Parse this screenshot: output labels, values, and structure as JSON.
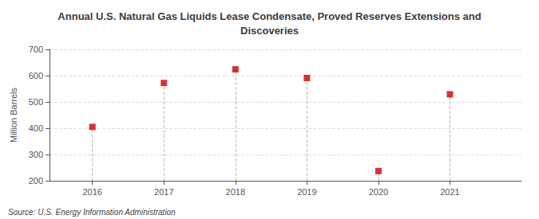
{
  "chart_data": {
    "type": "scatter",
    "title": "Annual U.S. Natural Gas Liquids Lease Condensate, Proved Reserves Extensions and\nDiscoveries",
    "ylabel": "Million Barrels",
    "annotations": [
      "Source: U.S. Energy Information Administration"
    ],
    "x": [
      2016,
      2017,
      2018,
      2019,
      2020,
      2021
    ],
    "values": [
      405,
      572,
      624,
      591,
      237,
      529
    ],
    "color": "#CC0000",
    "marker": "square",
    "xlim": [
      2015.4,
      2022.0
    ],
    "xticks": [
      2016,
      2017,
      2018,
      2019,
      2020,
      2021
    ],
    "ylim": [
      200,
      700
    ],
    "yticks": [
      200,
      300,
      400,
      500,
      600,
      700
    ],
    "grid": true
  }
}
